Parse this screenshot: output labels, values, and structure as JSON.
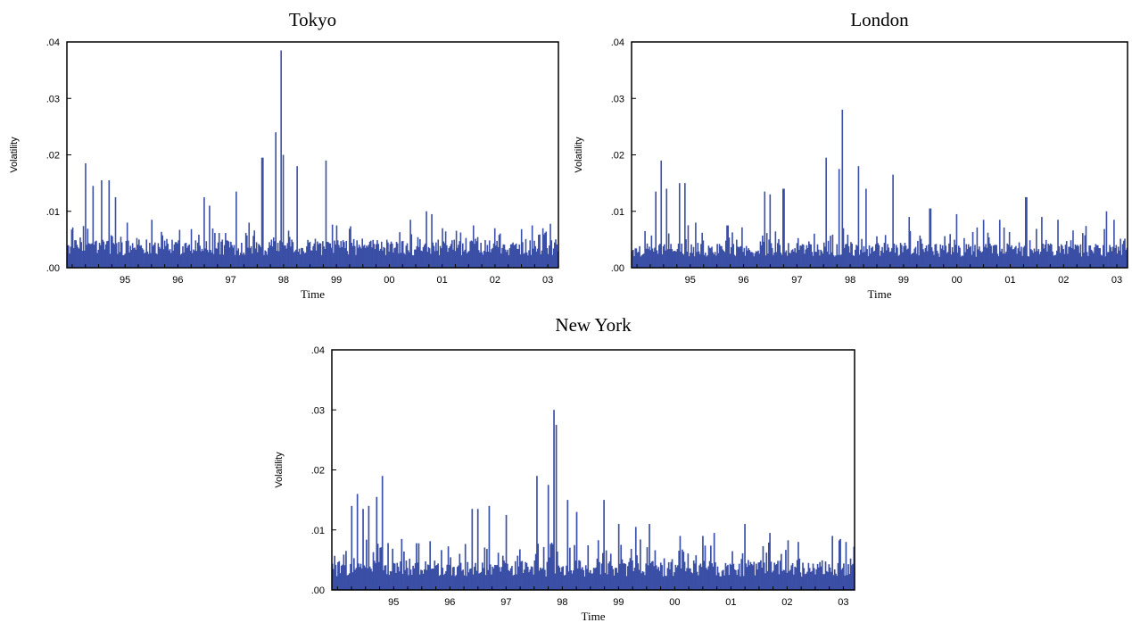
{
  "colors": {
    "bars": "#3b4fa6",
    "axis": "#000000",
    "background": "#ffffff"
  },
  "chart_data": [
    {
      "type": "bar",
      "title": "Tokyo",
      "xlabel": "Time",
      "ylabel": "Volatility",
      "ylim": [
        0,
        0.04
      ],
      "xlim": [
        1994.4,
        2003.7
      ],
      "yticks": [
        ".00",
        ".01",
        ".02",
        ".03",
        ".04"
      ],
      "ytick_values": [
        0,
        0.01,
        0.02,
        0.03,
        0.04
      ],
      "xticks": [
        "95",
        "96",
        "97",
        "98",
        "99",
        "00",
        "01",
        "02",
        "03"
      ],
      "xtick_values": [
        1995,
        1996,
        1997,
        1998,
        1999,
        2000,
        2001,
        2002,
        2003
      ],
      "baseline": 0.004,
      "noise": 0.002,
      "peaks": [
        [
          1994.75,
          0.0185
        ],
        [
          1994.9,
          0.0145
        ],
        [
          1995.05,
          0.0155
        ],
        [
          1995.2,
          0.0155
        ],
        [
          1995.32,
          0.0125
        ],
        [
          1995.55,
          0.008
        ],
        [
          1996.0,
          0.0085
        ],
        [
          1997.0,
          0.0125
        ],
        [
          1997.1,
          0.011
        ],
        [
          1997.6,
          0.0135
        ],
        [
          1998.1,
          0.0195
        ],
        [
          1998.35,
          0.024
        ],
        [
          1998.45,
          0.0385
        ],
        [
          1998.5,
          0.02
        ],
        [
          1998.75,
          0.018
        ],
        [
          1999.3,
          0.019
        ],
        [
          1999.5,
          0.0075
        ],
        [
          2000.9,
          0.0085
        ],
        [
          2001.2,
          0.01
        ],
        [
          2001.3,
          0.0095
        ],
        [
          2001.5,
          0.007
        ],
        [
          2002.1,
          0.0075
        ],
        [
          2002.5,
          0.007
        ],
        [
          2003.2,
          0.0075
        ],
        [
          2003.4,
          0.007
        ]
      ]
    },
    {
      "type": "bar",
      "title": "London",
      "xlabel": "Time",
      "ylabel": "Volatility",
      "ylim": [
        0,
        0.04
      ],
      "xlim": [
        1994.4,
        2003.7
      ],
      "yticks": [
        ".00",
        ".01",
        ".02",
        ".03",
        ".04"
      ],
      "ytick_values": [
        0,
        0.01,
        0.02,
        0.03,
        0.04
      ],
      "xticks": [
        "95",
        "96",
        "97",
        "98",
        "99",
        "00",
        "01",
        "02",
        "03"
      ],
      "xtick_values": [
        1995,
        1996,
        1997,
        1998,
        1999,
        2000,
        2001,
        2002,
        2003
      ],
      "baseline": 0.0035,
      "noise": 0.0022,
      "peaks": [
        [
          1994.65,
          0.0065
        ],
        [
          1994.85,
          0.0135
        ],
        [
          1994.95,
          0.019
        ],
        [
          1995.05,
          0.014
        ],
        [
          1995.3,
          0.015
        ],
        [
          1995.4,
          0.015
        ],
        [
          1995.6,
          0.008
        ],
        [
          1996.2,
          0.0075
        ],
        [
          1996.9,
          0.0135
        ],
        [
          1997.0,
          0.013
        ],
        [
          1997.25,
          0.014
        ],
        [
          1998.05,
          0.0195
        ],
        [
          1998.3,
          0.0175
        ],
        [
          1998.35,
          0.028
        ],
        [
          1998.65,
          0.018
        ],
        [
          1998.8,
          0.014
        ],
        [
          1999.3,
          0.0165
        ],
        [
          1999.6,
          0.009
        ],
        [
          2000.0,
          0.0105
        ],
        [
          2000.5,
          0.0095
        ],
        [
          2001.0,
          0.0085
        ],
        [
          2001.3,
          0.0085
        ],
        [
          2001.8,
          0.0125
        ],
        [
          2002.1,
          0.009
        ],
        [
          2002.4,
          0.0085
        ],
        [
          2003.3,
          0.01
        ],
        [
          2003.45,
          0.0085
        ]
      ]
    },
    {
      "type": "bar",
      "title": "New York",
      "xlabel": "Time",
      "ylabel": "Volatility",
      "ylim": [
        0,
        0.04
      ],
      "xlim": [
        1994.4,
        2003.7
      ],
      "yticks": [
        ".00",
        ".01",
        ".02",
        ".03",
        ".04"
      ],
      "ytick_values": [
        0,
        0.01,
        0.02,
        0.03,
        0.04
      ],
      "xticks": [
        "95",
        "96",
        "97",
        "98",
        "99",
        "00",
        "01",
        "02",
        "03"
      ],
      "xtick_values": [
        1995,
        1996,
        1997,
        1998,
        1999,
        2000,
        2001,
        2002,
        2003
      ],
      "baseline": 0.004,
      "noise": 0.0025,
      "peaks": [
        [
          1994.65,
          0.0065
        ],
        [
          1994.75,
          0.014
        ],
        [
          1994.85,
          0.016
        ],
        [
          1994.95,
          0.0135
        ],
        [
          1995.05,
          0.014
        ],
        [
          1995.2,
          0.0155
        ],
        [
          1995.3,
          0.019
        ],
        [
          1995.65,
          0.0085
        ],
        [
          1996.9,
          0.0135
        ],
        [
          1997.0,
          0.0135
        ],
        [
          1997.2,
          0.014
        ],
        [
          1997.5,
          0.0125
        ],
        [
          1998.05,
          0.019
        ],
        [
          1998.25,
          0.0175
        ],
        [
          1998.35,
          0.03
        ],
        [
          1998.4,
          0.0275
        ],
        [
          1998.6,
          0.015
        ],
        [
          1998.75,
          0.013
        ],
        [
          1999.25,
          0.015
        ],
        [
          1999.5,
          0.011
        ],
        [
          1999.8,
          0.0105
        ],
        [
          2000.05,
          0.011
        ],
        [
          2000.6,
          0.009
        ],
        [
          2001.0,
          0.009
        ],
        [
          2001.2,
          0.0095
        ],
        [
          2001.75,
          0.011
        ],
        [
          2002.2,
          0.0095
        ],
        [
          2002.7,
          0.008
        ],
        [
          2003.3,
          0.009
        ],
        [
          2003.45,
          0.0085
        ]
      ]
    }
  ]
}
